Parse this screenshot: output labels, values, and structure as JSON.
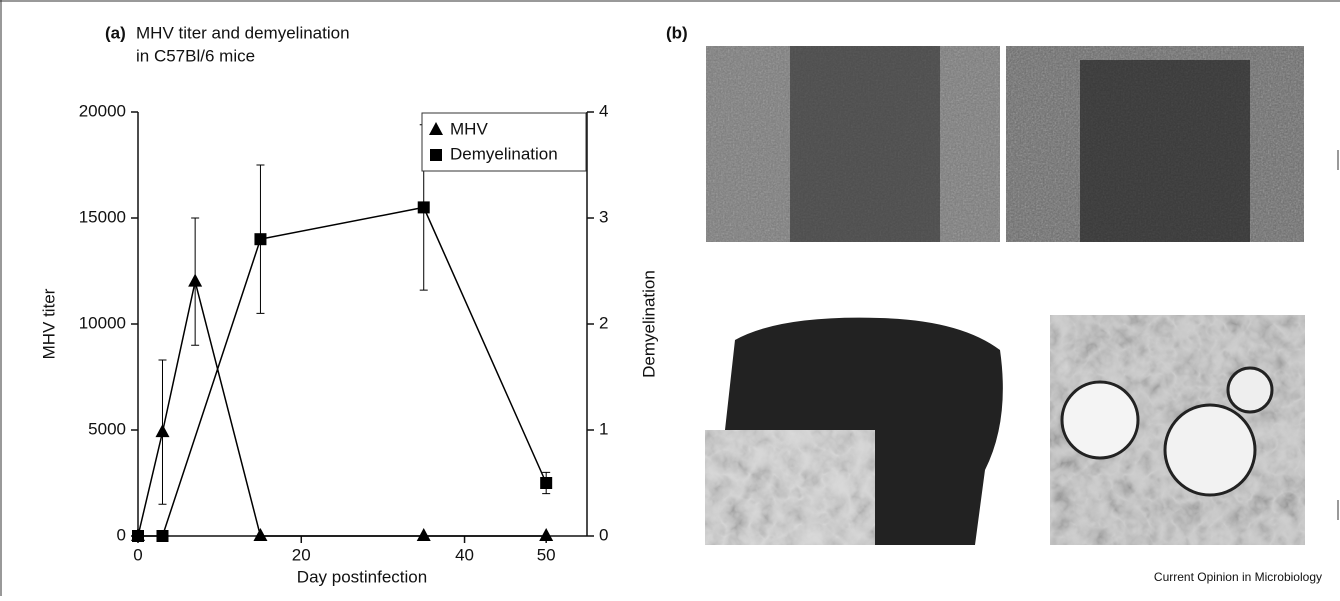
{
  "chart_data": {
    "type": "line",
    "panel_label": "(a)",
    "title_lines": [
      "MHV titer and demyelination",
      "in C57Bl/6 mice"
    ],
    "x_label": "Day postinfection",
    "y_label": "MHV titer",
    "y2_label": "Demyelination",
    "xlim": [
      0,
      55
    ],
    "xticks": [
      0,
      20,
      40,
      50
    ],
    "ylim": [
      0,
      20000
    ],
    "yticks": [
      0,
      5000,
      10000,
      15000,
      20000
    ],
    "y2lim": [
      0,
      4
    ],
    "y2ticks": [
      0,
      1,
      2,
      3,
      4
    ],
    "legend": "top-right",
    "series": [
      {
        "name": "MHV",
        "color": "#000000",
        "marker": "triangle",
        "axis": "y",
        "x": [
          0,
          3,
          7,
          15,
          35,
          50
        ],
        "values": [
          0,
          4900,
          12000,
          0,
          0,
          0
        ],
        "errors": [
          null,
          3400,
          3000,
          null,
          null,
          null
        ]
      },
      {
        "name": "Demyelination",
        "color": "#000000",
        "marker": "square",
        "axis": "y2",
        "x": [
          0,
          3,
          15,
          35,
          50
        ],
        "values": [
          0,
          0,
          2.8,
          3.1,
          0.5
        ],
        "errors": [
          null,
          null,
          0.7,
          0.78,
          0.1
        ]
      }
    ]
  },
  "panel_b": {
    "label": "(b)"
  },
  "credit": "Current Opinion in Microbiology"
}
